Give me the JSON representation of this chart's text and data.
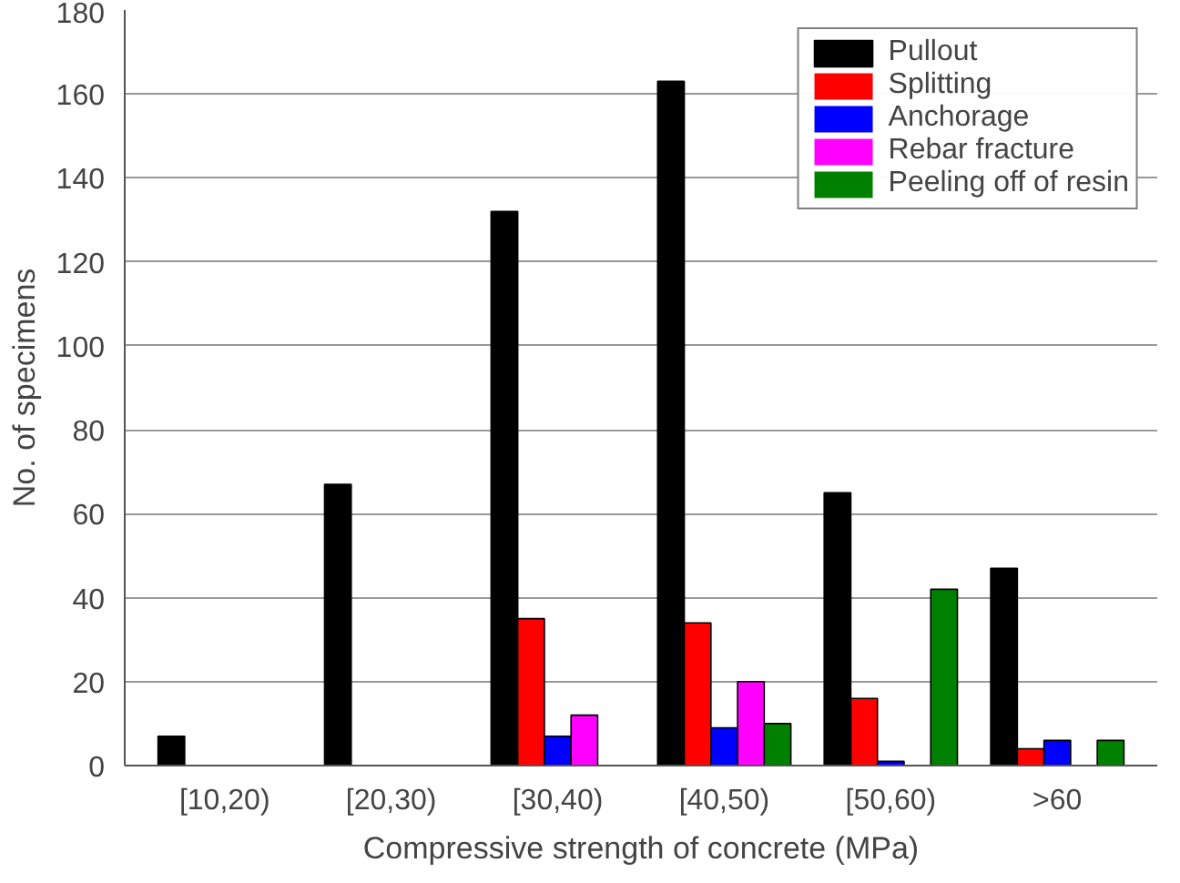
{
  "chart_data": {
    "type": "bar",
    "xlabel": "Compressive strength of concrete (MPa)",
    "ylabel": "No. of specimens",
    "categories": [
      "[10,20)",
      "[20,30)",
      "[30,40)",
      "[40,50)",
      "[50,60)",
      ">60"
    ],
    "series": [
      {
        "name": "Pullout",
        "color": "#000000",
        "values": [
          7,
          67,
          132,
          163,
          65,
          47
        ]
      },
      {
        "name": "Splitting",
        "color": "#ff0000",
        "values": [
          0,
          0,
          35,
          34,
          16,
          4
        ]
      },
      {
        "name": "Anchorage",
        "color": "#0000ff",
        "values": [
          0,
          0,
          7,
          9,
          1,
          6
        ]
      },
      {
        "name": "Rebar fracture",
        "color": "#ff00ff",
        "values": [
          0,
          0,
          12,
          20,
          0,
          0
        ]
      },
      {
        "name": "Peeling off of resin",
        "color": "#008000",
        "values": [
          0,
          0,
          0,
          10,
          42,
          6
        ]
      }
    ],
    "ylim": [
      0,
      180
    ],
    "yticks": [
      0,
      20,
      40,
      60,
      80,
      100,
      120,
      140,
      160,
      180
    ],
    "grid": "y",
    "legend": "top right"
  }
}
